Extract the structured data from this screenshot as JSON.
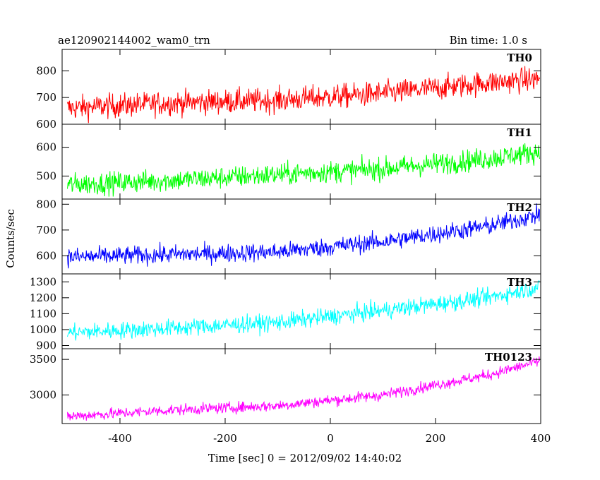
{
  "chart_data": {
    "type": "line",
    "title": "ae120902144002_wam0_trn",
    "bin_time": "Bin time: 1.0 s",
    "xlabel": "Time [sec] 0 = 2012/09/02 14:40:02",
    "ylabel": "Counts/sec",
    "xlim": [
      -510,
      400
    ],
    "x_ticks": [
      "-400",
      "-200",
      "0",
      "200",
      "400"
    ],
    "x_tick_values": [
      -400,
      -200,
      0,
      200,
      400
    ],
    "panels": [
      {
        "name": "TH0",
        "color": "#ff0000",
        "ylim": [
          600,
          880
        ],
        "y_ticks": [
          "600",
          "700",
          "800"
        ],
        "y_tick_values": [
          600,
          700,
          800
        ],
        "trend": {
          "x": [
            -500,
            -300,
            -100,
            100,
            300,
            400
          ],
          "y": [
            660,
            680,
            690,
            715,
            755,
            770
          ]
        },
        "noise_sd": 32
      },
      {
        "name": "TH1",
        "color": "#00ff00",
        "ylim": [
          420,
          680
        ],
        "y_ticks": [
          "500",
          "600"
        ],
        "y_tick_values": [
          500,
          600
        ],
        "trend": {
          "x": [
            -500,
            -300,
            -100,
            100,
            300,
            400
          ],
          "y": [
            470,
            485,
            505,
            525,
            560,
            585
          ]
        },
        "noise_sd": 27
      },
      {
        "name": "TH2",
        "color": "#0000ff",
        "ylim": [
          530,
          820
        ],
        "y_ticks": [
          "600",
          "700",
          "800"
        ],
        "y_tick_values": [
          600,
          700,
          800
        ],
        "trend": {
          "x": [
            -500,
            -300,
            -100,
            100,
            300,
            400
          ],
          "y": [
            595,
            605,
            615,
            655,
            715,
            760
          ]
        },
        "noise_sd": 25
      },
      {
        "name": "TH3",
        "color": "#00ffff",
        "ylim": [
          880,
          1350
        ],
        "y_ticks": [
          "900",
          "1000",
          "1100",
          "1200",
          "1300"
        ],
        "y_tick_values": [
          900,
          1000,
          1100,
          1200,
          1300
        ],
        "trend": {
          "x": [
            -500,
            -300,
            -100,
            100,
            300,
            400
          ],
          "y": [
            980,
            1010,
            1045,
            1120,
            1200,
            1270
          ]
        },
        "noise_sd": 38
      },
      {
        "name": "TH0123",
        "color": "#ff00ff",
        "ylim": [
          2600,
          3650
        ],
        "y_ticks": [
          "3000",
          "3500"
        ],
        "y_tick_values": [
          3000,
          3500
        ],
        "trend": {
          "x": [
            -500,
            -300,
            -100,
            100,
            300,
            400
          ],
          "y": [
            2700,
            2790,
            2850,
            3000,
            3280,
            3480
          ]
        },
        "noise_sd": 55
      }
    ]
  }
}
